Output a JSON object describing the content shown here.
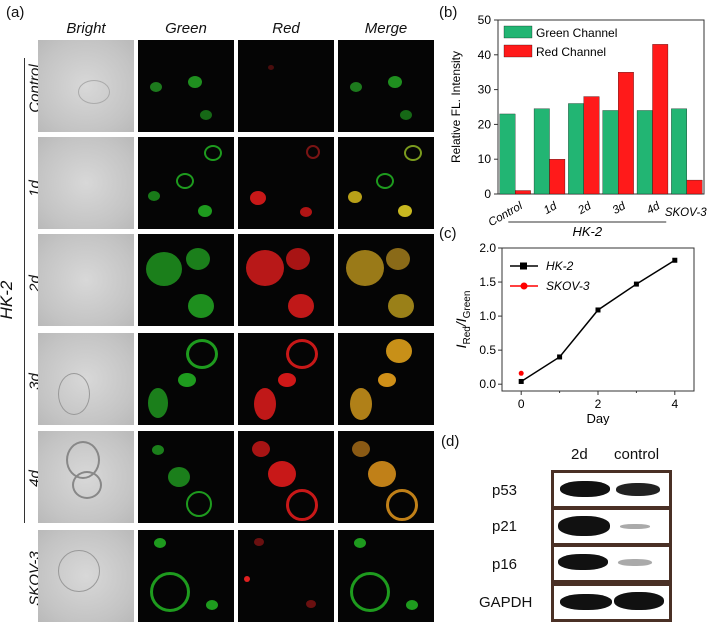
{
  "panel_a": {
    "label": "(a)",
    "columns": [
      "Bright",
      "Green",
      "Red",
      "Merge"
    ],
    "rows": [
      "Control",
      "1d",
      "2d",
      "3d",
      "4d",
      "SKOV-3"
    ],
    "group_label": "HK-2"
  },
  "panel_b": {
    "label": "(b)"
  },
  "panel_c": {
    "label": "(c)"
  },
  "panel_d": {
    "label": "(d)",
    "columns": [
      "2d",
      "control"
    ],
    "proteins": [
      "p53",
      "p21",
      "p16",
      "GAPDH"
    ]
  },
  "chart_data": [
    {
      "type": "bar",
      "ylabel": "Relative FL. Intensity",
      "xlabel": "",
      "group_label": "HK-2",
      "categories": [
        "Control",
        "1d",
        "2d",
        "3d",
        "4d",
        "SKOV-3"
      ],
      "ylim": [
        0,
        50
      ],
      "yticks": [
        0,
        10,
        20,
        30,
        40,
        50
      ],
      "legend_position": "top-left",
      "series": [
        {
          "name": "Green Channel",
          "color": "#22b573",
          "values": [
            23,
            24.5,
            26,
            24,
            24,
            24.5
          ]
        },
        {
          "name": "Red Channel",
          "color": "#ff1a1a",
          "values": [
            1,
            10,
            28,
            35,
            43,
            4
          ]
        }
      ]
    },
    {
      "type": "line",
      "xlabel": "Day",
      "ylabel_main": "I",
      "ylabel_sub1": "Red",
      "ylabel_sep": "/I",
      "ylabel_sub2": "Green",
      "xlim": [
        -0.5,
        4.5
      ],
      "ylim": [
        -0.1,
        2.0
      ],
      "xticks": [
        0,
        2,
        4
      ],
      "yticks": [
        0.0,
        0.5,
        1.0,
        1.5,
        2.0
      ],
      "ytick_labels": [
        "0.0",
        "0.5",
        "1.0",
        "1.5",
        "2.0"
      ],
      "legend_position": "top-left",
      "series": [
        {
          "name": "HK-2",
          "color": "#000000",
          "marker": "square",
          "x": [
            0,
            1,
            2,
            3,
            4
          ],
          "y": [
            0.04,
            0.4,
            1.09,
            1.47,
            1.82
          ]
        },
        {
          "name": "SKOV-3",
          "color": "#ff0000",
          "marker": "circle",
          "x": [
            0
          ],
          "y": [
            0.16
          ]
        }
      ]
    }
  ]
}
